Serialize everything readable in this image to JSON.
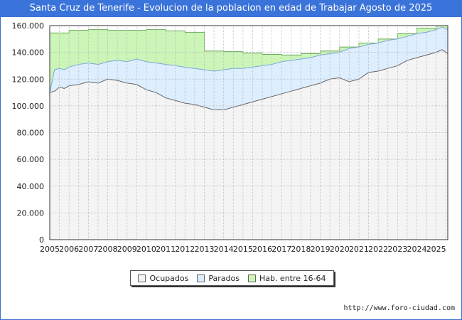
{
  "title": "Santa Cruz de Tenerife - Evolucion de la poblacion en edad de Trabajar Agosto de 2025",
  "footer_url": "http://www.foro-ciudad.com",
  "colors": {
    "ocupados_fill": "#f4f4f4",
    "parados_fill": "#ddeeff",
    "hab_fill": "#ccf5b8",
    "line_ocupados": "#666666",
    "line_parados": "#7aa7d8",
    "line_hab": "#66aa55"
  },
  "chart_data": {
    "type": "area",
    "x_ticks": [
      "2005",
      "2006",
      "2007",
      "2008",
      "2009",
      "2010",
      "2011",
      "2012",
      "2013",
      "2014",
      "2015",
      "2016",
      "2017",
      "2018",
      "2019",
      "2020",
      "2021",
      "2022",
      "2023",
      "2024",
      "2025"
    ],
    "y_ticks": [
      "0",
      "20.000",
      "40.000",
      "60.000",
      "80.000",
      "100.000",
      "120.000",
      "140.000",
      "160.000"
    ],
    "ylim": [
      0,
      160000
    ],
    "xlim": [
      2005.0,
      2025.6
    ],
    "grid": true,
    "legend_position": "bottom",
    "legend": [
      "Ocupados",
      "Parados",
      "Hab. entre 16-64"
    ],
    "series": [
      {
        "name": "Hab. entre 16-64",
        "type": "step",
        "x": [
          2005,
          2006,
          2007,
          2008,
          2009,
          2010,
          2011,
          2012,
          2013,
          2014,
          2015,
          2016,
          2017,
          2018,
          2019,
          2020,
          2021,
          2022,
          2023,
          2024,
          2025
        ],
        "values": [
          154500,
          156500,
          157000,
          156500,
          156500,
          157000,
          156000,
          155000,
          141000,
          140500,
          139500,
          138500,
          138000,
          139000,
          141000,
          144000,
          147000,
          150000,
          154000,
          158000,
          160000
        ]
      },
      {
        "name": "Parados",
        "x": [
          2005.0,
          2005.25,
          2005.5,
          2005.75,
          2006.0,
          2006.5,
          2007.0,
          2007.5,
          2008.0,
          2008.5,
          2009.0,
          2009.5,
          2010.0,
          2010.5,
          2011.0,
          2011.5,
          2012.0,
          2012.5,
          2013.0,
          2013.5,
          2014.0,
          2014.5,
          2015.0,
          2015.5,
          2016.0,
          2016.5,
          2017.0,
          2017.5,
          2018.0,
          2018.5,
          2019.0,
          2019.5,
          2020.0,
          2020.5,
          2021.0,
          2021.5,
          2022.0,
          2022.5,
          2023.0,
          2023.5,
          2024.0,
          2024.5,
          2025.0,
          2025.3,
          2025.6
        ],
        "values": [
          110000,
          127000,
          128000,
          127000,
          129000,
          131000,
          132000,
          131000,
          133000,
          134000,
          133000,
          135000,
          133000,
          132000,
          131000,
          130000,
          129000,
          128000,
          127000,
          126000,
          127000,
          128000,
          128000,
          129000,
          130000,
          131000,
          133000,
          134000,
          135000,
          136000,
          138000,
          139000,
          140000,
          143000,
          144000,
          146000,
          147000,
          149000,
          150000,
          152000,
          154000,
          155000,
          157000,
          159000,
          157000
        ]
      },
      {
        "name": "Ocupados",
        "x": [
          2005.0,
          2005.25,
          2005.5,
          2005.75,
          2006.0,
          2006.5,
          2007.0,
          2007.5,
          2008.0,
          2008.5,
          2009.0,
          2009.5,
          2010.0,
          2010.5,
          2011.0,
          2011.5,
          2012.0,
          2012.5,
          2013.0,
          2013.5,
          2014.0,
          2014.5,
          2015.0,
          2015.5,
          2016.0,
          2016.5,
          2017.0,
          2017.5,
          2018.0,
          2018.5,
          2019.0,
          2019.5,
          2020.0,
          2020.5,
          2021.0,
          2021.5,
          2022.0,
          2022.5,
          2023.0,
          2023.5,
          2024.0,
          2024.5,
          2025.0,
          2025.3,
          2025.6
        ],
        "values": [
          110000,
          111000,
          114000,
          113000,
          115000,
          116000,
          118000,
          117000,
          120000,
          119000,
          117000,
          116000,
          112000,
          110000,
          106000,
          104000,
          102000,
          101000,
          99000,
          97000,
          97000,
          99000,
          101000,
          103000,
          105000,
          107000,
          109000,
          111000,
          113000,
          115000,
          117000,
          120000,
          121000,
          118000,
          120000,
          125000,
          126000,
          128000,
          130000,
          134000,
          136000,
          138000,
          140000,
          142000,
          139000
        ]
      }
    ]
  }
}
